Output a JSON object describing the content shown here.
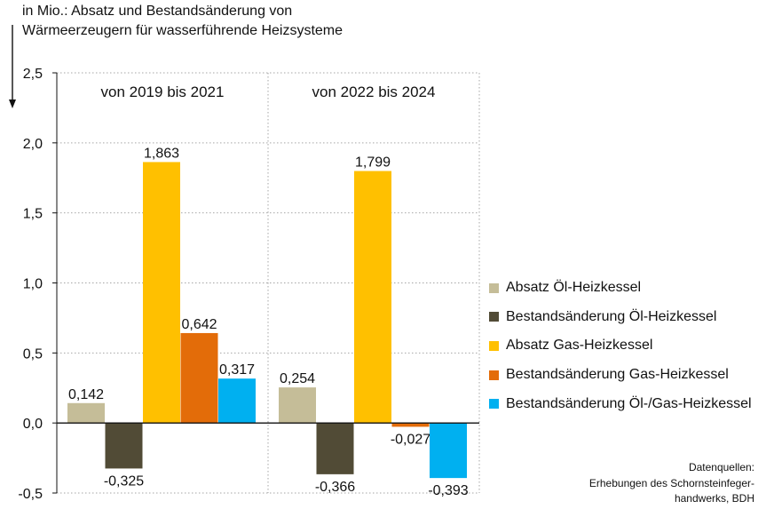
{
  "chart_data": {
    "type": "bar",
    "title_lines": [
      "in Mio.: Absatz und Bestandsänderung  von",
      "Wärmeerzeugern  für wasserführende  Heizsysteme"
    ],
    "ylim": [
      -0.5,
      2.5
    ],
    "ytick_values": [
      -0.5,
      0,
      0.5,
      1,
      1.5,
      2,
      2.5
    ],
    "ytick_labels": [
      "-0,5",
      "0,0",
      "0,5",
      "1,0",
      "1,5",
      "2,0",
      "2,5"
    ],
    "grid": true,
    "legend_position": "right",
    "categories": [
      "von 2019 bis 2021",
      "von 2022 bis 2024"
    ],
    "series": [
      {
        "name": "Absatz Öl-Heizkessel",
        "color": "#c5bd98",
        "values": [
          0.142,
          0.254
        ],
        "labels": [
          "0,142",
          "0,254"
        ]
      },
      {
        "name": "Bestandsänderung Öl-Heizkessel",
        "color": "#514b36",
        "values": [
          -0.325,
          -0.366
        ],
        "labels": [
          "-0,325",
          "-0,366"
        ]
      },
      {
        "name": "Absatz Gas-Heizkessel",
        "color": "#ffc000",
        "values": [
          1.863,
          1.799
        ],
        "labels": [
          "1,863",
          "1,799"
        ]
      },
      {
        "name": "Bestandsänderung Gas-Heizkessel",
        "color": "#e36c09",
        "values": [
          0.642,
          -0.027
        ],
        "labels": [
          "0,642",
          "-0,027"
        ]
      },
      {
        "name": "Bestandsänderung Öl-/Gas-Heizkessel",
        "color": "#00b0f0",
        "values": [
          0.317,
          -0.393
        ],
        "labels": [
          "0,317",
          "-0,393"
        ]
      }
    ],
    "source_lines": [
      "Datenquellen:",
      "Erhebungen des Schornsteinfeger-",
      "handwerks, BDH"
    ]
  }
}
